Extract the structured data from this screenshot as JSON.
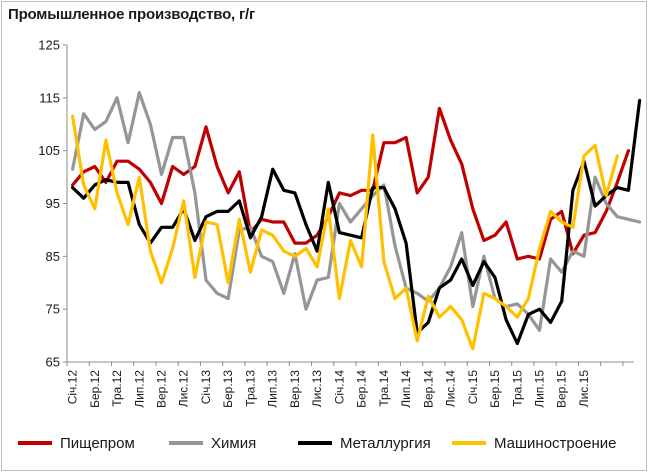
{
  "chart_data": {
    "type": "line",
    "title": "Промышленное производство, г/г",
    "xlabel": "",
    "ylabel": "",
    "ylim": [
      65,
      125
    ],
    "yticks": [
      65,
      75,
      85,
      95,
      105,
      115,
      125
    ],
    "tick_labels": [
      "Січ.12",
      "Бер.12",
      "Тра.12",
      "Лип.12",
      "Вер.12",
      "Лис.12",
      "Січ.13",
      "Бер.13",
      "Тра.13",
      "Лип.13",
      "Вер.13",
      "Лис.13",
      "Січ.14",
      "Бер.14",
      "Тра.14",
      "Лип.14",
      "Вер.14",
      "Лис.14",
      "Січ.15",
      "Бер.15",
      "Тра.15",
      "Лип.15",
      "Вер.15",
      "Лис.15"
    ],
    "legend_position": "bottom",
    "grid": false,
    "series": [
      {
        "name": "Пищепром",
        "color": "#c00000",
        "values": [
          98.5,
          101,
          102,
          99,
          103,
          103,
          101.5,
          99,
          95,
          102,
          100.5,
          102,
          109.5,
          102,
          97,
          101,
          89.5,
          92,
          91.5,
          91.5,
          87.5,
          87.5,
          89,
          92.5,
          97,
          96.5,
          97.5,
          97.5,
          106.5,
          106.5,
          107.5,
          97,
          100,
          113,
          107,
          102.5,
          94,
          88,
          89,
          91.5,
          84.5,
          85,
          84.5,
          92,
          93.5,
          85.5,
          89,
          89.5,
          93.5,
          99,
          105
        ]
      },
      {
        "name": "Химия",
        "color": "#969696",
        "values": [
          101.5,
          112,
          109,
          110.5,
          115,
          106.5,
          116,
          110,
          100.5,
          107.5,
          107.5,
          97,
          80.5,
          78,
          77,
          90,
          90.5,
          85,
          84,
          78,
          85.5,
          75,
          80.5,
          81,
          95,
          91.5,
          94,
          96.5,
          98.5,
          87,
          79,
          78,
          76.5,
          79,
          83,
          89.5,
          75.5,
          85,
          77,
          75.5,
          76,
          74,
          71,
          84.5,
          82,
          86,
          85,
          100,
          95,
          92.5,
          92,
          91.5
        ]
      },
      {
        "name": "Металлургия",
        "color": "#000000",
        "values": [
          98,
          96,
          98.5,
          99.5,
          99,
          99,
          91,
          87.5,
          90.5,
          90.5,
          94,
          88,
          92.5,
          93.5,
          93.5,
          95.5,
          88.5,
          92.5,
          101.5,
          97.5,
          97,
          91,
          86,
          99,
          89.5,
          89,
          88.5,
          98,
          98,
          94,
          87.5,
          70.5,
          72.5,
          79,
          80.5,
          84.5,
          79.5,
          84,
          81,
          73,
          68.5,
          74,
          75,
          72.5,
          76.5,
          97.5,
          103,
          94.5,
          96.5,
          98,
          97.5,
          114.5
        ]
      },
      {
        "name": "Машиностроение",
        "color": "#ffc000",
        "values": [
          111.5,
          98.5,
          94,
          107,
          97,
          91,
          100,
          86,
          80,
          86.5,
          95.5,
          81,
          91.5,
          91,
          80,
          92,
          82,
          90,
          89,
          86,
          85,
          86.5,
          83,
          94,
          77,
          88,
          83,
          108,
          84,
          77,
          79,
          69,
          77.5,
          73.5,
          75.5,
          73,
          67.5,
          78,
          77,
          75.5,
          73.5,
          77,
          86.5,
          93.5,
          91.5,
          90.5,
          104,
          106,
          96.5,
          104
        ]
      }
    ]
  }
}
